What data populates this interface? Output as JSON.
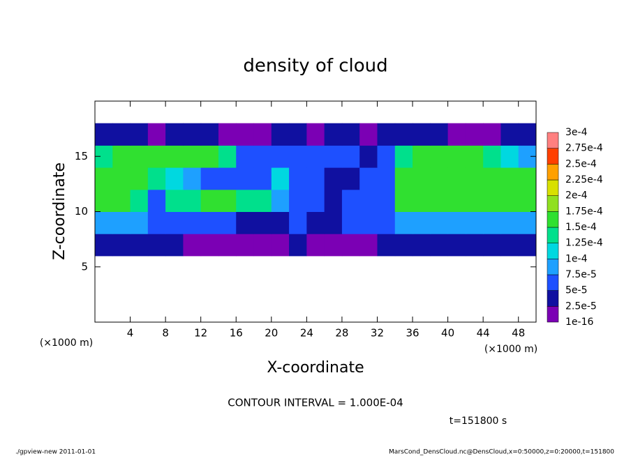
{
  "chart_data": {
    "type": "heatmap",
    "title": "density of cloud",
    "x_label": "X-coordinate",
    "y_label": "Z-coordinate",
    "x_unit": "(×1000 m)",
    "y_unit": "(×1000 m)",
    "contour_interval": "CONTOUR INTERVAL = 1.000E-04",
    "time_label": "t=151800 s",
    "footer_left": "./gpview-new  2011-01-01",
    "footer_right": "MarsCond_DensCloud.nc@DensCloud,x=0:50000,z=0:20000,t=151800",
    "xlim": [
      0,
      50
    ],
    "ylim": [
      0,
      20
    ],
    "xticks": [
      4,
      8,
      12,
      16,
      20,
      24,
      28,
      32,
      36,
      40,
      44,
      48
    ],
    "yticks": [
      5,
      10,
      15
    ],
    "x": [
      1,
      3,
      5,
      7,
      9,
      11,
      13,
      15,
      17,
      19,
      21,
      23,
      25,
      27,
      29,
      31,
      33,
      35,
      37,
      39,
      41,
      43,
      45,
      47,
      49
    ],
    "y": [
      7,
      9,
      11,
      13,
      15,
      17
    ],
    "values": [
      [
        4e-05,
        4e-05,
        4e-05,
        3e-05,
        3e-05,
        2e-05,
        2e-05,
        2e-05,
        1e-05,
        2e-05,
        2e-05,
        3e-05,
        2e-05,
        2e-05,
        2e-05,
        2e-05,
        3e-05,
        4e-05,
        4e-05,
        4e-05,
        4e-05,
        4e-05,
        4e-05,
        4e-05,
        4e-05
      ],
      [
        9e-05,
        9e-05,
        9e-05,
        6e-05,
        5e-05,
        5e-05,
        5e-05,
        5e-05,
        4e-05,
        4e-05,
        4e-05,
        5e-05,
        4e-05,
        4e-05,
        5e-05,
        5e-05,
        7e-05,
        9e-05,
        9e-05,
        9e-05,
        9e-05,
        9e-05,
        9e-05,
        9e-05,
        9e-05
      ],
      [
        0.00015,
        0.00015,
        0.00014,
        5e-05,
        0.00013,
        0.00014,
        0.00015,
        0.00015,
        0.00014,
        0.00013,
        9e-05,
        6e-05,
        5e-05,
        4e-05,
        5e-05,
        5e-05,
        5e-05,
        0.00015,
        0.00015,
        0.00015,
        0.00015,
        0.00015,
        0.00015,
        0.00015,
        0.00015
      ],
      [
        0.00015,
        0.00015,
        0.00015,
        0.00014,
        0.00012,
        8e-05,
        6e-05,
        6e-05,
        5e-05,
        5e-05,
        0.0001,
        6e-05,
        5e-05,
        4e-05,
        4e-05,
        5e-05,
        6e-05,
        0.00015,
        0.00016,
        0.00016,
        0.00016,
        0.00015,
        0.00015,
        0.00015,
        0.00015
      ],
      [
        0.00013,
        0.00015,
        0.00015,
        0.00015,
        0.00015,
        0.00015,
        0.00015,
        0.00014,
        6e-05,
        5e-05,
        5e-05,
        5e-05,
        6e-05,
        5e-05,
        5e-05,
        4e-05,
        6e-05,
        0.00013,
        0.00015,
        0.00015,
        0.00015,
        0.00015,
        0.00013,
        0.00012,
        9e-05
      ],
      [
        4e-05,
        3e-05,
        3e-05,
        2e-05,
        3e-05,
        3e-05,
        3e-05,
        2e-05,
        2e-05,
        2e-05,
        3e-05,
        3e-05,
        2e-05,
        3e-05,
        3e-05,
        2e-05,
        3e-05,
        3e-05,
        4e-05,
        3e-05,
        2e-05,
        2e-05,
        2e-05,
        3e-05,
        3e-05
      ]
    ],
    "cell_width": 2,
    "cell_height": 2,
    "levels": [
      {
        "value": 1e-16,
        "label": "1e-16"
      },
      {
        "value": 2.5e-05,
        "label": "2.5e-5"
      },
      {
        "value": 5e-05,
        "label": "5e-5"
      },
      {
        "value": 7.5e-05,
        "label": "7.5e-5"
      },
      {
        "value": 0.0001,
        "label": "1e-4"
      },
      {
        "value": 0.000125,
        "label": "1.25e-4"
      },
      {
        "value": 0.00015,
        "label": "1.5e-4"
      },
      {
        "value": 0.000175,
        "label": "1.75e-4"
      },
      {
        "value": 0.0002,
        "label": "2e-4"
      },
      {
        "value": 0.000225,
        "label": "2.25e-4"
      },
      {
        "value": 0.00025,
        "label": "2.5e-4"
      },
      {
        "value": 0.000275,
        "label": "2.75e-4"
      },
      {
        "value": 0.0003,
        "label": "3e-4"
      }
    ],
    "colors": [
      "#7b00b4",
      "#1010a0",
      "#1e50ff",
      "#1ea0ff",
      "#00d8e0",
      "#00e08c",
      "#30e030",
      "#90e020",
      "#d8e000",
      "#ffa000",
      "#ff4000",
      "#ff8080"
    ]
  }
}
